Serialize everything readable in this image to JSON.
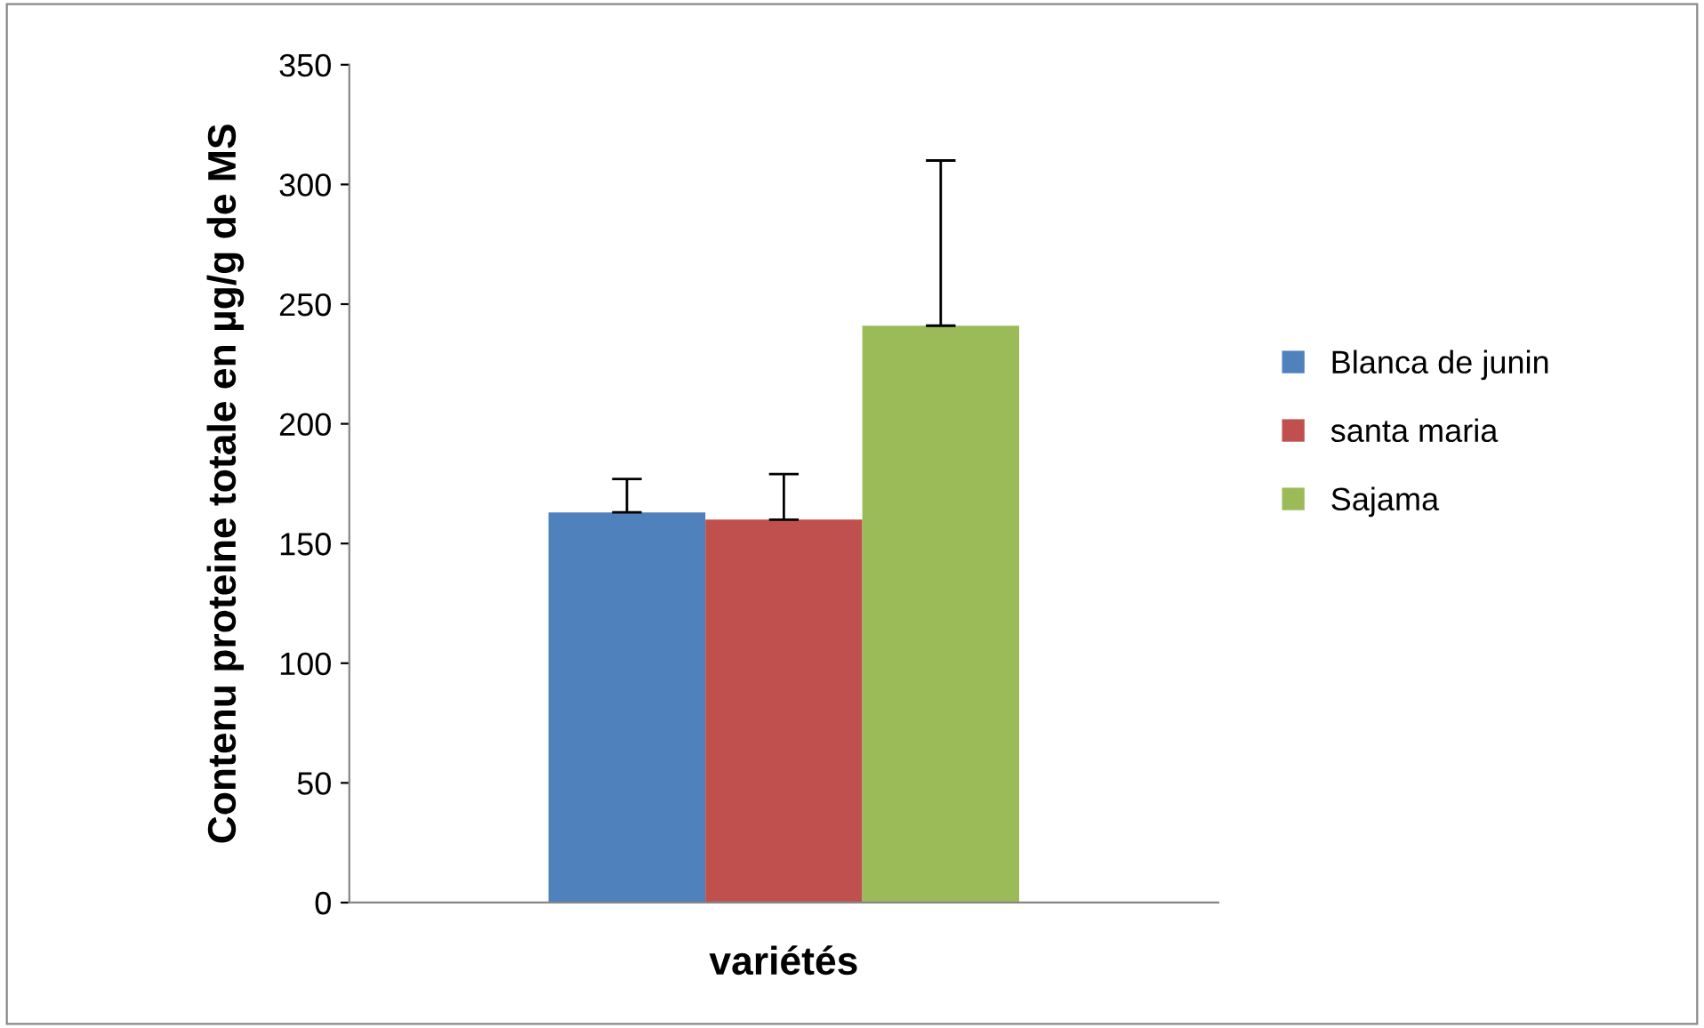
{
  "chart_data": {
    "type": "bar",
    "xlabel": "variétés",
    "ylabel": "Contenu proteine totale en µg/g de MS",
    "categories": [
      null
    ],
    "series": [
      {
        "name": "Blanca de junin",
        "color": "#4f81bd",
        "values": [
          163
        ],
        "errors": [
          [
            163,
            177
          ]
        ]
      },
      {
        "name": "santa maria",
        "color": "#c0504d",
        "values": [
          160
        ],
        "errors": [
          [
            160,
            179
          ]
        ]
      },
      {
        "name": "Sajama",
        "color": "#9bbb59",
        "values": [
          241
        ],
        "errors": [
          [
            241,
            310
          ]
        ]
      }
    ],
    "ylim": [
      0,
      350
    ],
    "yticks": [
      0,
      50,
      100,
      150,
      200,
      250,
      300,
      350
    ],
    "grid": false,
    "legend": "right"
  }
}
